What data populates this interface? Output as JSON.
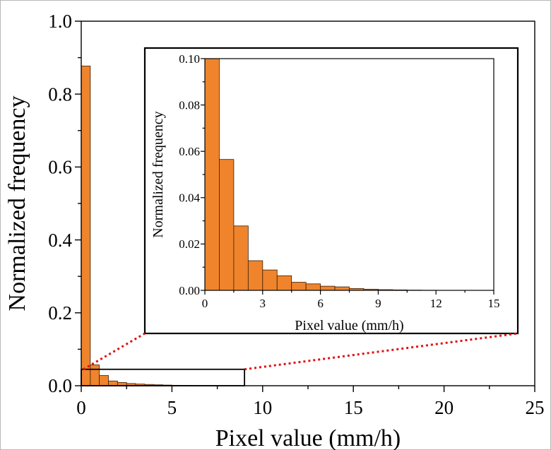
{
  "chart_data": [
    {
      "type": "bar",
      "role": "main",
      "title": "",
      "xlabel": "Pixel value (mm/h)",
      "ylabel": "Normalized frequency",
      "xlim": [
        0,
        25
      ],
      "ylim": [
        0,
        1.0
      ],
      "xticks": [
        "0",
        "5",
        "10",
        "15",
        "20",
        "25"
      ],
      "yticks": [
        "0.0",
        "0.2",
        "0.4",
        "0.6",
        "0.8",
        "1.0"
      ],
      "bin_width": 0.5,
      "x": [
        0,
        0.5,
        1,
        1.5,
        2,
        2.5,
        3,
        3.5,
        4,
        4.5,
        5,
        5.5,
        6,
        6.5,
        7,
        7.5,
        8,
        8.5
      ],
      "values": [
        0.877,
        0.057,
        0.028,
        0.013,
        0.009,
        0.006,
        0.0045,
        0.0035,
        0.0025,
        0.0018,
        0.0012,
        0.0008,
        0.0005,
        0.0003,
        0.0002,
        0.0001,
        0.0001,
        5e-05
      ],
      "grid": false,
      "legend": "none",
      "zoom_box": {
        "x": [
          0,
          9
        ],
        "y": [
          0,
          0.045
        ]
      }
    },
    {
      "type": "bar",
      "role": "inset",
      "title": "",
      "xlabel": "Pixel value (mm/h)",
      "ylabel": "Normalized frequency",
      "xlim": [
        0,
        15
      ],
      "ylim": [
        0,
        0.1
      ],
      "xticks": [
        "0",
        "3",
        "6",
        "9",
        "12",
        "15"
      ],
      "yticks": [
        "0.00",
        "0.02",
        "0.04",
        "0.06",
        "0.08",
        "0.10"
      ],
      "bin_width": 0.75,
      "x": [
        0,
        0.75,
        1.5,
        2.25,
        3,
        3.75,
        4.5,
        5.25,
        6,
        6.75,
        7.5,
        8.25,
        9,
        9.75,
        10.5,
        11.25
      ],
      "values": [
        0.1,
        0.0565,
        0.0278,
        0.0128,
        0.0088,
        0.0063,
        0.0035,
        0.0028,
        0.0018,
        0.0015,
        0.0008,
        0.0005,
        0.0003,
        0.0002,
        0.0001,
        5e-05
      ],
      "grid": false,
      "legend": "none"
    }
  ],
  "colors": {
    "bar_fill": "#ef842d",
    "bar_edge": "#3a1e06",
    "connector": "#e01010",
    "axis": "#000000"
  }
}
